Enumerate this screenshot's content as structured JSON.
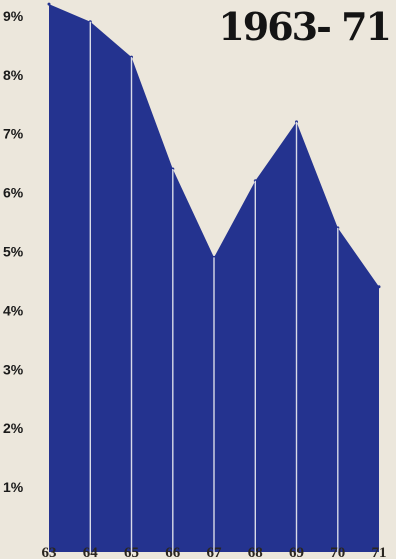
{
  "chart_data": {
    "type": "area",
    "title": "1963- 71",
    "x": [
      "63",
      "64",
      "65",
      "66",
      "67",
      "68",
      "69",
      "70",
      "71"
    ],
    "values": [
      9.2,
      8.9,
      8.3,
      6.4,
      4.9,
      6.2,
      7.2,
      5.4,
      4.4
    ],
    "y_ticks": [
      "1%",
      "2%",
      "3%",
      "4%",
      "5%",
      "6%",
      "7%",
      "8%",
      "9%"
    ],
    "y_tick_values": [
      1,
      2,
      3,
      4,
      5,
      6,
      7,
      8,
      9
    ],
    "ylim": [
      0,
      9.3
    ],
    "xlabel": "",
    "ylabel": "",
    "grid": false,
    "colors": {
      "fill": "#24338f",
      "background": "#ece7dc",
      "divider": "#d9dbe8"
    }
  }
}
